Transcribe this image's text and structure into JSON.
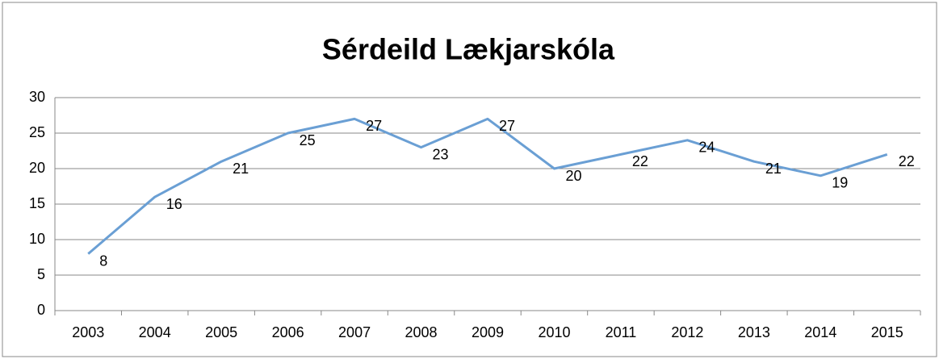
{
  "chart_data": {
    "type": "line",
    "title": "Sérdeild Lækjarskóla",
    "categories": [
      "2003",
      "2004",
      "2005",
      "2006",
      "2007",
      "2008",
      "2009",
      "2010",
      "2011",
      "2012",
      "2013",
      "2014",
      "2015"
    ],
    "values": [
      8,
      16,
      21,
      25,
      27,
      23,
      27,
      20,
      22,
      24,
      21,
      19,
      22
    ],
    "color": "#6a9fd4",
    "ylim": [
      0,
      30
    ],
    "yticks": [
      0,
      5,
      10,
      15,
      20,
      25,
      30
    ],
    "grid": true
  }
}
